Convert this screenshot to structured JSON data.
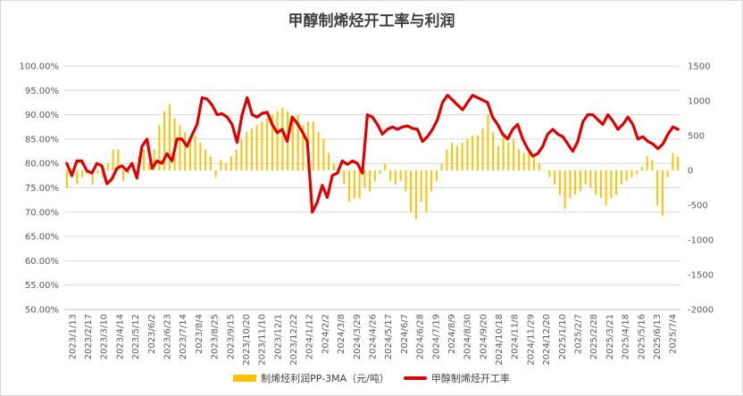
{
  "chart_data": {
    "type": "bar+line",
    "title": "甲醇制烯烃开工率与利润",
    "x_tick_labels": [
      "2023/1/13",
      "2023/2/17",
      "2023/3/10",
      "2023/4/14",
      "2023/5/12",
      "2023/6/2",
      "2023/6/23",
      "2023/7/14",
      "2023/8/4",
      "2023/8/25",
      "2023/9/15",
      "2023/10/20",
      "2023/11/10",
      "2023/12/1",
      "2023/12/22",
      "2024/1/12",
      "2024/2/2",
      "2024/3/8",
      "2024/3/29",
      "2024/4/26",
      "2024/5/17",
      "2024/6/7",
      "2024/6/28",
      "2024/7/19",
      "2024/8/9",
      "2024/8/30",
      "2024/9/20",
      "2024/10/18",
      "2024/11/8",
      "2024/11/29",
      "2024/12/20",
      "2025/1/10",
      "2025/2/7",
      "2025/2/28",
      "2025/3/21",
      "2025/4/18",
      "2025/5/16",
      "2025/6/13",
      "2025/7/4"
    ],
    "left_axis": {
      "ylim": [
        0.5,
        1.0
      ],
      "tick_labels": [
        "50.00%",
        "55.00%",
        "60.00%",
        "65.00%",
        "70.00%",
        "75.00%",
        "80.00%",
        "85.00%",
        "90.00%",
        "95.00%",
        "100.00%"
      ]
    },
    "right_axis": {
      "ylim": [
        -2000,
        1500
      ],
      "tick_labels": [
        "-2000",
        "-1500",
        "-1000",
        "-500",
        "0",
        "500",
        "1000",
        "1500"
      ]
    },
    "grid": "horizontal",
    "legend_position": "bottom",
    "colors": {
      "profit_bar": "#FFC000",
      "rate_line": "#E00000",
      "grid": "#d9d9d9",
      "text": "#595959"
    },
    "series": [
      {
        "name": "制烯烃利润PP-3MA（元/吨）",
        "type": "bar",
        "axis": "right",
        "values": [
          -250,
          -100,
          -200,
          -100,
          -50,
          -200,
          -50,
          -100,
          100,
          300,
          300,
          -150,
          -50,
          100,
          200,
          300,
          100,
          300,
          650,
          850,
          950,
          750,
          650,
          550,
          450,
          500,
          400,
          300,
          200,
          -100,
          150,
          100,
          200,
          300,
          450,
          550,
          600,
          650,
          700,
          750,
          800,
          850,
          900,
          850,
          750,
          800,
          650,
          700,
          700,
          550,
          450,
          250,
          100,
          -50,
          -200,
          -450,
          -400,
          -400,
          -250,
          -300,
          -150,
          -50,
          100,
          -150,
          -200,
          -150,
          -300,
          -600,
          -700,
          -450,
          -600,
          -300,
          -150,
          100,
          300,
          400,
          350,
          400,
          450,
          500,
          500,
          600,
          800,
          550,
          350,
          500,
          400,
          450,
          300,
          250,
          300,
          200,
          100,
          0,
          -100,
          -200,
          -350,
          -550,
          -400,
          -350,
          -300,
          -200,
          -250,
          -350,
          -400,
          -500,
          -400,
          -350,
          -200,
          -150,
          -100,
          -50,
          50,
          200,
          150,
          -500,
          -650,
          -100,
          250,
          200
        ]
      },
      {
        "name": "甲醇制烯烃开工率",
        "type": "line",
        "axis": "left",
        "values": [
          0.8,
          0.775,
          0.805,
          0.805,
          0.785,
          0.78,
          0.8,
          0.795,
          0.758,
          0.768,
          0.79,
          0.795,
          0.785,
          0.8,
          0.77,
          0.835,
          0.85,
          0.79,
          0.805,
          0.8,
          0.82,
          0.805,
          0.85,
          0.85,
          0.835,
          0.858,
          0.88,
          0.935,
          0.932,
          0.92,
          0.9,
          0.902,
          0.895,
          0.88,
          0.843,
          0.9,
          0.935,
          0.9,
          0.895,
          0.903,
          0.905,
          0.88,
          0.863,
          0.87,
          0.845,
          0.895,
          0.882,
          0.865,
          0.845,
          0.7,
          0.72,
          0.755,
          0.73,
          0.775,
          0.78,
          0.805,
          0.798,
          0.805,
          0.8,
          0.78,
          0.9,
          0.895,
          0.88,
          0.86,
          0.87,
          0.875,
          0.87,
          0.875,
          0.877,
          0.872,
          0.87,
          0.845,
          0.855,
          0.87,
          0.89,
          0.925,
          0.94,
          0.93,
          0.92,
          0.91,
          0.925,
          0.94,
          0.935,
          0.93,
          0.925,
          0.895,
          0.88,
          0.86,
          0.85,
          0.87,
          0.88,
          0.85,
          0.83,
          0.815,
          0.82,
          0.835,
          0.86,
          0.87,
          0.86,
          0.855,
          0.84,
          0.825,
          0.845,
          0.885,
          0.9,
          0.9,
          0.89,
          0.88,
          0.9,
          0.887,
          0.87,
          0.88,
          0.895,
          0.88,
          0.85,
          0.855,
          0.845,
          0.84,
          0.83,
          0.84,
          0.86,
          0.875,
          0.87
        ]
      }
    ]
  }
}
